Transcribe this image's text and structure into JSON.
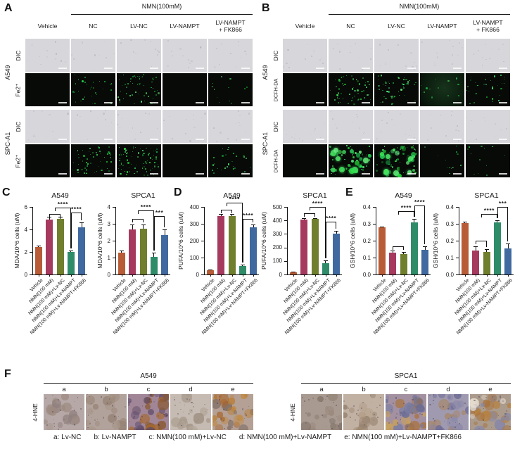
{
  "categories": [
    "Vehicle",
    "NMN(100 mM)",
    "NMN(100 mM)+Lv-NC",
    "NMN(100 mM)+Lv-NAMPT",
    "NMN(100 mM)+Lv-NAMPT+FK866"
  ],
  "bar_colors": [
    "#b85c38",
    "#a63a5e",
    "#6f7f2d",
    "#2f8c69",
    "#40699f"
  ],
  "micro_panels": [
    {
      "label": "A",
      "header": "NMN(100mM)",
      "columns": [
        "Vehicle",
        "NC",
        "LV-NC",
        "LV-NAMPT",
        "LV-NAMPT\n+ FK866"
      ],
      "cell_lines": [
        "A549",
        "SPC-A1"
      ],
      "row_labels": [
        [
          "DIC",
          "Fe2⁺"
        ],
        [
          "DIC",
          "Fe2⁺"
        ]
      ],
      "fluor_signal": [
        [
          0,
          2,
          3,
          0,
          1
        ],
        [
          0,
          3,
          4,
          0,
          2
        ]
      ],
      "tint": [
        [
          0,
          0,
          0,
          0,
          0
        ],
        [
          0,
          0,
          0,
          0,
          0
        ]
      ],
      "blob": [
        false,
        false
      ]
    },
    {
      "label": "B",
      "header": "NMN(100mM)",
      "columns": [
        "Vehicle",
        "NC",
        "LV-NC",
        "LV-NAMPT",
        "LV-NAMPT\n+ FK866"
      ],
      "cell_lines": [
        "A549",
        "SPC-A1"
      ],
      "row_labels": [
        [
          "DIC",
          "DCFH-DA"
        ],
        [
          "DIC",
          "DCFH-DA"
        ]
      ],
      "fluor_signal": [
        [
          0,
          3,
          3,
          1,
          2
        ],
        [
          0,
          5,
          5,
          1,
          1
        ]
      ],
      "tint": [
        [
          0,
          0,
          0,
          1,
          0
        ],
        [
          0,
          0,
          0,
          0,
          0
        ]
      ],
      "blob": [
        false,
        true
      ]
    }
  ],
  "chart_panel_labels": [
    "C",
    "D",
    "E"
  ],
  "chart_data": [
    {
      "type": "bar",
      "panel": "C",
      "title": "A549",
      "ylabel": "MDA/10^6 cells (uM)",
      "ylim": [
        0,
        6
      ],
      "yticks": [
        "0",
        "2",
        "4",
        "6"
      ],
      "categories": [
        "Vehicle",
        "NMN(100 mM)",
        "NMN(100 mM)+Lv-NC",
        "NMN(100 mM)+Lv-NAMPT",
        "NMN(100 mM)+Lv-NAMPT+FK866"
      ],
      "values": [
        2.45,
        4.9,
        4.95,
        2.0,
        4.2
      ],
      "errors": [
        0.1,
        0.25,
        0.2,
        0.12,
        0.45
      ],
      "sig": [
        {
          "x1": 1,
          "x2": 2,
          "y": 5.35,
          "label": ""
        },
        {
          "x1": 1.5,
          "x2": 3,
          "y": 5.95,
          "label": "****"
        },
        {
          "x1": 3,
          "x2": 4,
          "y": 5.5,
          "label": "****"
        }
      ]
    },
    {
      "type": "bar",
      "panel": "C",
      "title": "SPCA1",
      "ylabel": "MDA/10^6 cells (uM)",
      "ylim": [
        0,
        4
      ],
      "yticks": [
        "0",
        "1",
        "2",
        "3",
        "4"
      ],
      "categories": [
        "Vehicle",
        "NMN(100 mM)",
        "NMN(100 mM)+Lv-NC",
        "NMN(100 mM)+Lv-NAMPT",
        "NMN(100 mM)+Lv-NAMPT+FK866"
      ],
      "values": [
        1.3,
        2.65,
        2.7,
        1.05,
        2.35
      ],
      "errors": [
        0.12,
        0.3,
        0.25,
        0.25,
        0.3
      ],
      "sig": [
        {
          "x1": 1,
          "x2": 2,
          "y": 3.3,
          "label": ""
        },
        {
          "x1": 1.5,
          "x2": 3,
          "y": 3.8,
          "label": "****"
        },
        {
          "x1": 3,
          "x2": 4,
          "y": 3.45,
          "label": "***"
        }
      ]
    },
    {
      "type": "bar",
      "panel": "D",
      "title": "A549",
      "ylabel": "PUFA/10^6 cells (uM)",
      "ylim": [
        0,
        400
      ],
      "yticks": [
        "0",
        "100",
        "200",
        "300",
        "400"
      ],
      "categories": [
        "Vehicle",
        "NMN(100 mM)",
        "NMN(100 mM)+Lv-NC",
        "NMN(100 mM)+Lv-NAMPT",
        "NMN(100 mM)+Lv-NAMPT+FK866"
      ],
      "values": [
        25,
        345,
        345,
        48,
        280
      ],
      "errors": [
        5,
        12,
        12,
        10,
        15
      ],
      "sig": [
        {
          "x1": 1,
          "x2": 2,
          "y": 382,
          "label": ""
        },
        {
          "x1": 1.5,
          "x2": 3,
          "y": 425,
          "label": "****"
        },
        {
          "x1": 3,
          "x2": 4,
          "y": 330,
          "label": "****"
        }
      ]
    },
    {
      "type": "bar",
      "panel": "D",
      "title": "SPCA1",
      "ylabel": "PUFA/10^6 cells (uM)",
      "ylim": [
        0,
        500
      ],
      "yticks": [
        "0",
        "100",
        "200",
        "300",
        "400",
        "500"
      ],
      "categories": [
        "Vehicle",
        "NMN(100 mM)",
        "NMN(100 mM)+Lv-NC",
        "NMN(100 mM)+Lv-NAMPT",
        "NMN(100 mM)+Lv-NAMPT+FK866"
      ],
      "values": [
        15,
        405,
        410,
        85,
        300
      ],
      "errors": [
        4,
        12,
        8,
        18,
        25
      ],
      "sig": [
        {
          "x1": 1,
          "x2": 2,
          "y": 452,
          "label": ""
        },
        {
          "x1": 1.5,
          "x2": 3,
          "y": 498,
          "label": "****"
        },
        {
          "x1": 3,
          "x2": 4,
          "y": 392,
          "label": "****"
        }
      ]
    },
    {
      "type": "bar",
      "panel": "E",
      "title": "A549",
      "ylabel": "GSH/10^6 cells (uM)",
      "ylim": [
        0,
        0.4
      ],
      "yticks": [
        "0.0",
        "0.1",
        "0.2",
        "0.3",
        "0.4"
      ],
      "categories": [
        "Vehicle",
        "NMN(100 mM)",
        "NMN(100 mM)+Lv-NC",
        "NMN(100 mM)+Lv-NAMPT",
        "NMN(100 mM)+Lv-NAMPT+FK866"
      ],
      "values": [
        0.28,
        0.13,
        0.12,
        0.31,
        0.145
      ],
      "errors": [
        0.005,
        0.012,
        0.015,
        0.02,
        0.02
      ],
      "sig": [
        {
          "x1": 1,
          "x2": 2,
          "y": 0.165,
          "label": ""
        },
        {
          "x1": 1.5,
          "x2": 3,
          "y": 0.375,
          "label": "****"
        },
        {
          "x1": 3,
          "x2": 4,
          "y": 0.41,
          "label": "****"
        }
      ]
    },
    {
      "type": "bar",
      "panel": "E",
      "title": "SPCA1",
      "ylabel": "GSH/10^6 cells (uM)",
      "ylim": [
        0,
        0.4
      ],
      "yticks": [
        "0.0",
        "0.1",
        "0.2",
        "0.3",
        "0.4"
      ],
      "categories": [
        "Vehicle",
        "NMN(100 mM)",
        "NMN(100 mM)+Lv-NC",
        "NMN(100 mM)+Lv-NAMPT",
        "NMN(100 mM)+Lv-NAMPT+FK866"
      ],
      "values": [
        0.305,
        0.14,
        0.135,
        0.31,
        0.155
      ],
      "errors": [
        0.008,
        0.025,
        0.015,
        0.012,
        0.03
      ],
      "sig": [
        {
          "x1": 1,
          "x2": 2,
          "y": 0.2,
          "label": ""
        },
        {
          "x1": 1.5,
          "x2": 3,
          "y": 0.36,
          "label": "****"
        },
        {
          "x1": 3,
          "x2": 4,
          "y": 0.4,
          "label": "***"
        }
      ]
    }
  ],
  "panel_F": {
    "label": "F",
    "row_label": "4-HNE",
    "groups": [
      {
        "title": "A549",
        "letters": [
          "a",
          "b",
          "c",
          "d",
          "e"
        ],
        "ihc": [
          {
            "base": "#b6a8a6",
            "spots": [
              "#8f7f7e",
              "#a2928c",
              "#9d8a80"
            ],
            "density": 18
          },
          {
            "base": "#b1a29b",
            "spots": [
              "#937f72",
              "#a8968a",
              "#9a8678"
            ],
            "density": 18
          },
          {
            "base": "#a18697",
            "spots": [
              "#a5692f",
              "#6d5a78",
              "#8a5a35",
              "#5e4a66"
            ],
            "density": 32
          },
          {
            "base": "#c6bbb2",
            "spots": [
              "#a79a8d",
              "#b5a89b",
              "#998a7c"
            ],
            "density": 14
          },
          {
            "base": "#b4a095",
            "spots": [
              "#a8652c",
              "#7c6a62",
              "#b97f3a",
              "#c08a45"
            ],
            "density": 28
          }
        ]
      },
      {
        "title": "SPCA1",
        "letters": [
          "a",
          "b",
          "c",
          "d",
          "e"
        ],
        "ihc": [
          {
            "base": "#a89a90",
            "spots": [
              "#8d7d72",
              "#9b8a7e",
              "#7e7066"
            ],
            "density": 16
          },
          {
            "base": "#c1b1a3",
            "spots": [
              "#a08b77",
              "#b29c86",
              "#8e7a66"
            ],
            "density": 16
          },
          {
            "base": "#a391a1",
            "spots": [
              "#a9713a",
              "#7a7da0",
              "#c9a15c",
              "#676b94"
            ],
            "density": 32
          },
          {
            "base": "#a09ab0",
            "spots": [
              "#6f6d96",
              "#a8835c",
              "#8a87a8"
            ],
            "density": 26
          },
          {
            "base": "#ab9b8d",
            "spots": [
              "#a9713a",
              "#8486aa",
              "#e8e0d2",
              "#b5813f"
            ],
            "density": 30
          }
        ]
      }
    ],
    "caption": [
      "a: Lv-NC",
      "b: Lv-NAMPT",
      "c: NMN(100 mM)+Lv-NC",
      "d: NMN(100 mM)+Lv-NAMPT",
      "e: NMN(100 mM)+Lv-NAMPT+FK866"
    ]
  }
}
